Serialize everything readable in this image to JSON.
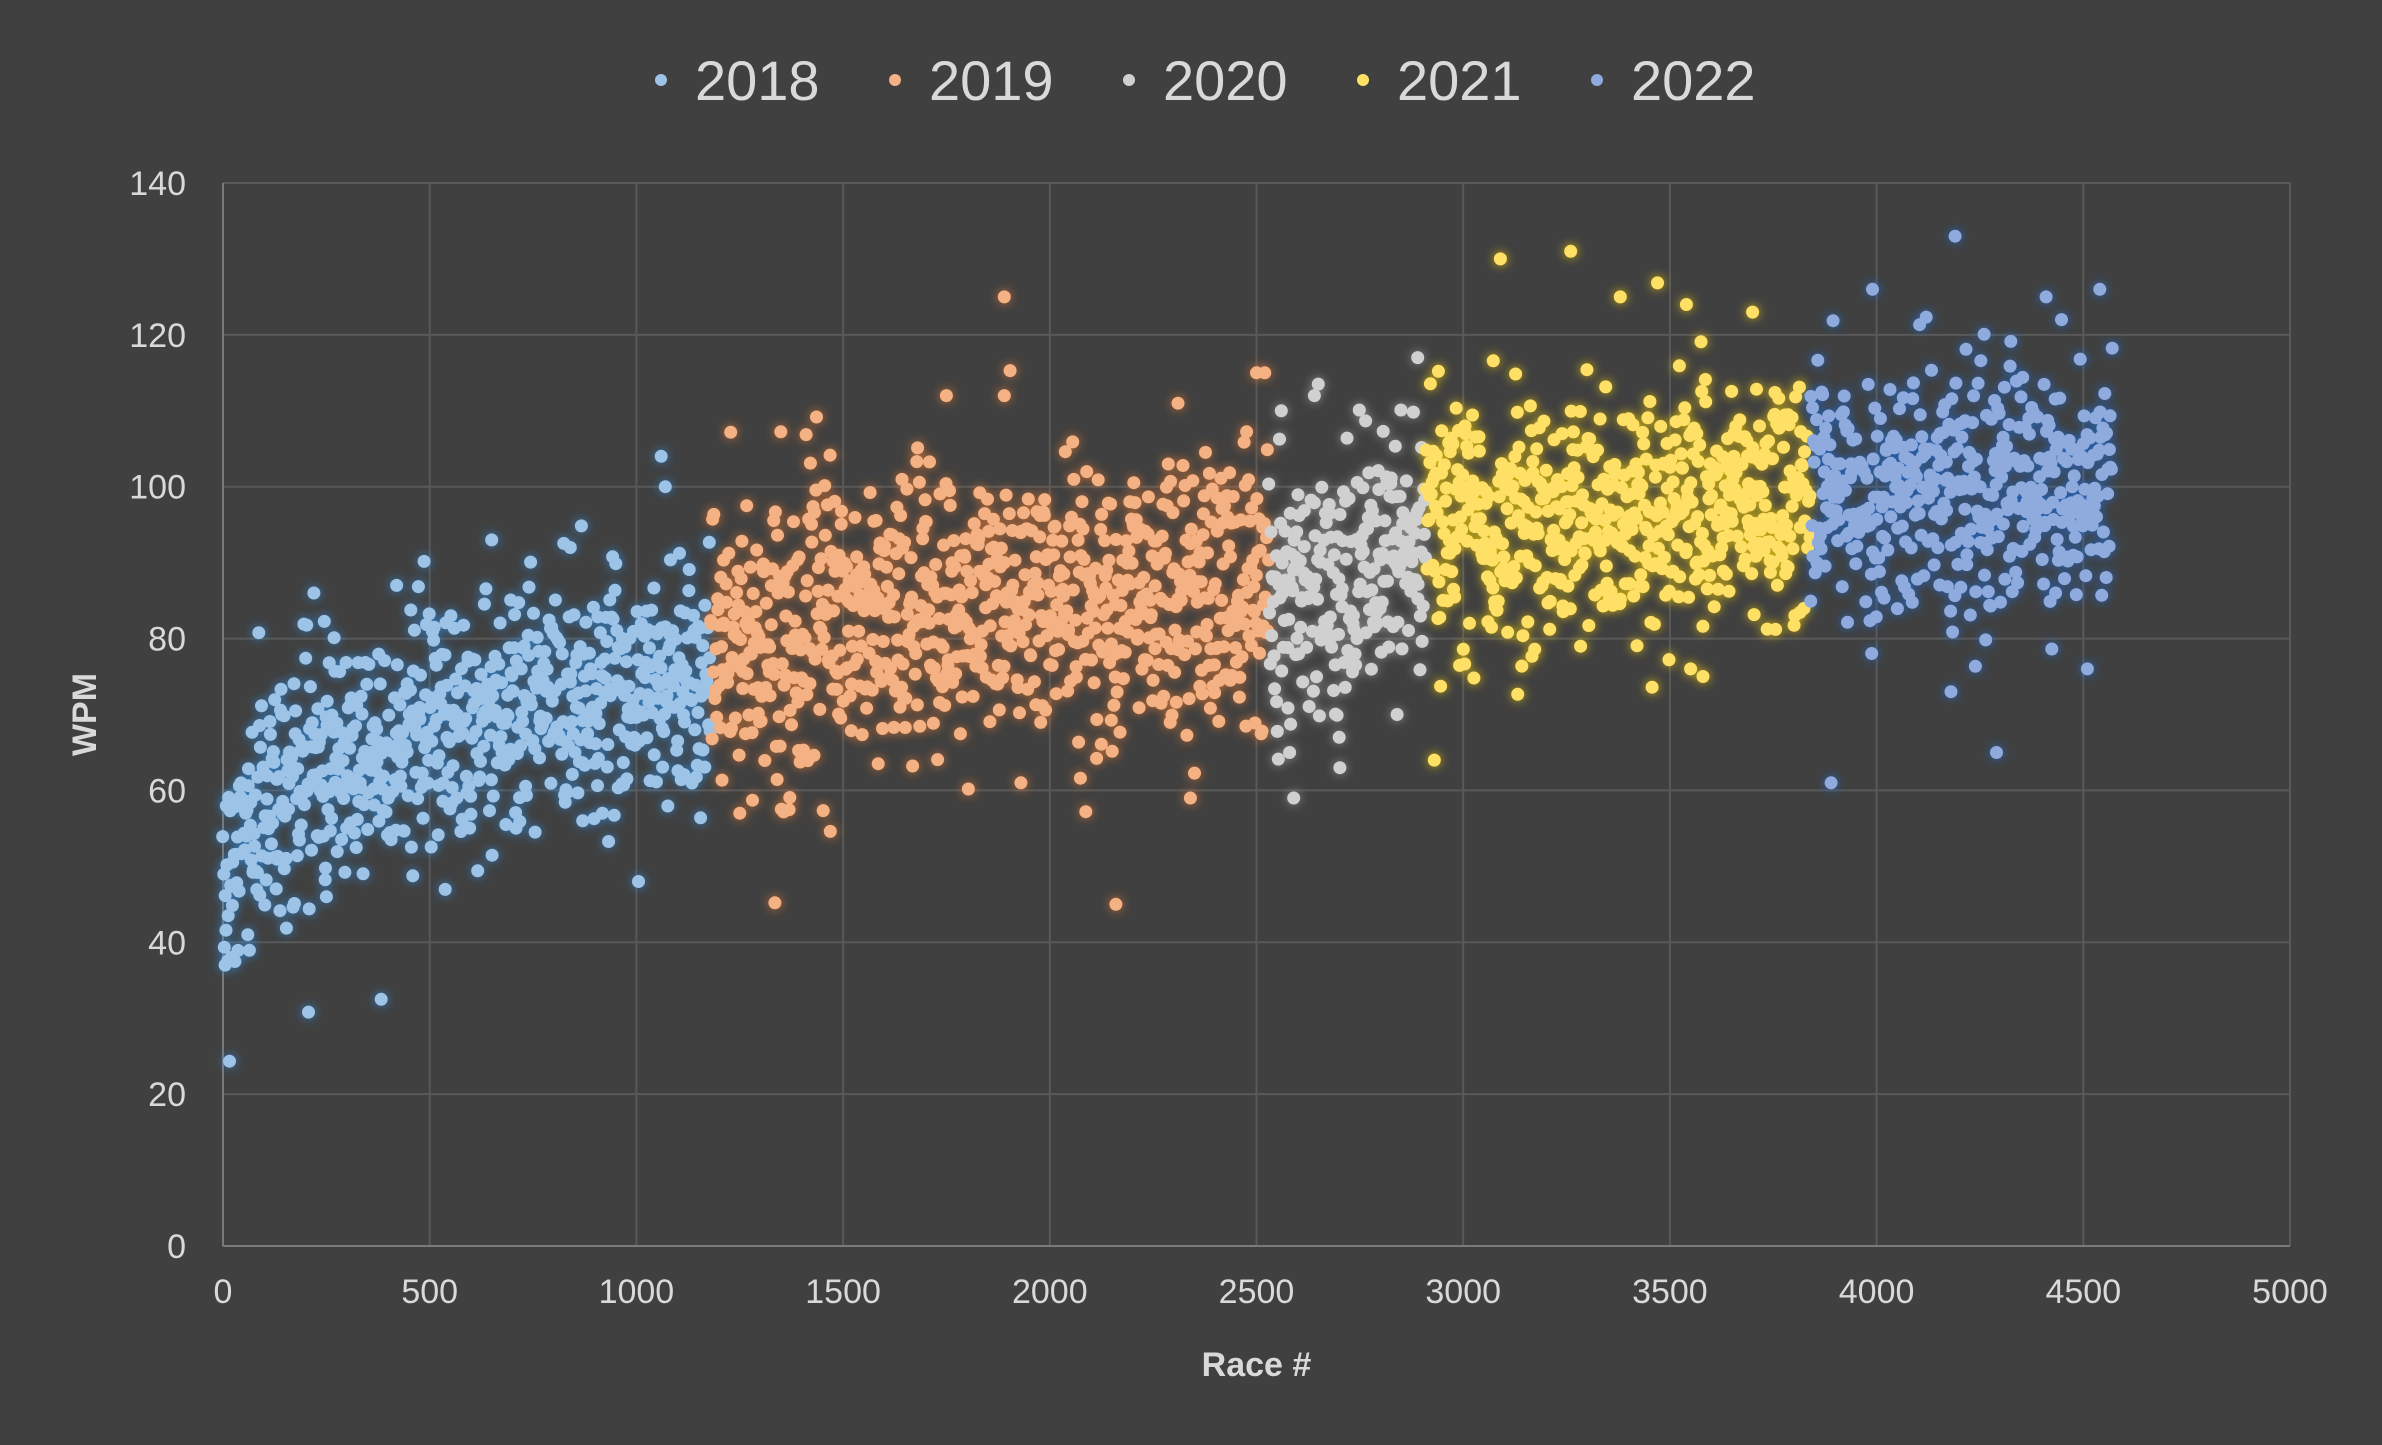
{
  "chart_data": {
    "type": "scatter",
    "xlabel": "Race #",
    "ylabel": "WPM",
    "xlim": [
      0,
      5000
    ],
    "ylim": [
      0,
      140
    ],
    "x_ticks": [
      0,
      500,
      1000,
      1500,
      2000,
      2500,
      3000,
      3500,
      4000,
      4500,
      5000
    ],
    "y_ticks": [
      0,
      20,
      40,
      60,
      80,
      100,
      120,
      140
    ],
    "x_tick_labels": [
      "0",
      "500",
      "1000",
      "1500",
      "2000",
      "2500",
      "3000",
      "3500",
      "4000",
      "4500",
      "5000"
    ],
    "y_tick_labels": [
      "0",
      "20",
      "40",
      "60",
      "80",
      "100",
      "120",
      "140"
    ],
    "grid": true,
    "legend_position": "top",
    "marker_glow": true,
    "series": [
      {
        "name": "2018",
        "color": "#9dc3e6",
        "glow": "#2e8fe6",
        "x_range": [
          0,
          1180
        ],
        "trend": [
          [
            0,
            46
          ],
          [
            50,
            55
          ],
          [
            200,
            63
          ],
          [
            500,
            68
          ],
          [
            800,
            72
          ],
          [
            1180,
            76
          ]
        ],
        "spread": 8,
        "sample_points": [
          [
            5,
            37
          ],
          [
            20,
            38
          ],
          [
            60,
            41
          ],
          [
            220,
            86
          ],
          [
            420,
            87
          ],
          [
            650,
            93
          ],
          [
            840,
            92
          ],
          [
            1060,
            104
          ],
          [
            1070,
            100
          ],
          [
            1005,
            48
          ],
          [
            870,
            56
          ],
          [
            250,
            46
          ]
        ]
      },
      {
        "name": "2019",
        "color": "#f4b183",
        "glow": "#ed7d31",
        "x_range": [
          1180,
          2530
        ],
        "trend": [
          [
            1180,
            78
          ],
          [
            1500,
            82
          ],
          [
            2000,
            85
          ],
          [
            2530,
            87
          ]
        ],
        "spread": 9,
        "sample_points": [
          [
            1890,
            125
          ],
          [
            2160,
            45
          ],
          [
            1250,
            57
          ],
          [
            1930,
            61
          ],
          [
            2340,
            59
          ],
          [
            2500,
            115
          ],
          [
            2520,
            115
          ],
          [
            1750,
            112
          ],
          [
            1890,
            112
          ],
          [
            2310,
            111
          ]
        ]
      },
      {
        "name": "2020",
        "color": "#d0d0d0",
        "glow": "#a5a5a5",
        "x_range": [
          2530,
          2910
        ],
        "trend": [
          [
            2530,
            86
          ],
          [
            2910,
            92
          ]
        ],
        "spread": 8,
        "sample_points": [
          [
            2590,
            59
          ],
          [
            2580,
            65
          ],
          [
            2640,
            112
          ],
          [
            2560,
            110
          ],
          [
            2890,
            117
          ],
          [
            2700,
            67
          ],
          [
            2840,
            70
          ]
        ]
      },
      {
        "name": "2021",
        "color": "#ffe066",
        "glow": "#ffd700",
        "x_range": [
          2910,
          3840
        ],
        "trend": [
          [
            2910,
            95
          ],
          [
            3840,
            98
          ]
        ],
        "spread": 8,
        "sample_points": [
          [
            3260,
            131
          ],
          [
            3090,
            130
          ],
          [
            2930,
            64
          ],
          [
            3580,
            75
          ],
          [
            3550,
            76
          ],
          [
            3380,
            125
          ],
          [
            3700,
            123
          ],
          [
            3540,
            124
          ]
        ]
      },
      {
        "name": "2022",
        "color": "#8faadc",
        "glow": "#1f6fe0",
        "x_range": [
          3840,
          4570
        ],
        "trend": [
          [
            3840,
            99
          ],
          [
            4570,
            100
          ]
        ],
        "spread": 8,
        "sample_points": [
          [
            4190,
            133
          ],
          [
            3890,
            61
          ],
          [
            4290,
            65
          ],
          [
            4540,
            126
          ],
          [
            3990,
            126
          ],
          [
            4180,
            73
          ],
          [
            4510,
            76
          ],
          [
            4410,
            125
          ]
        ]
      }
    ]
  }
}
